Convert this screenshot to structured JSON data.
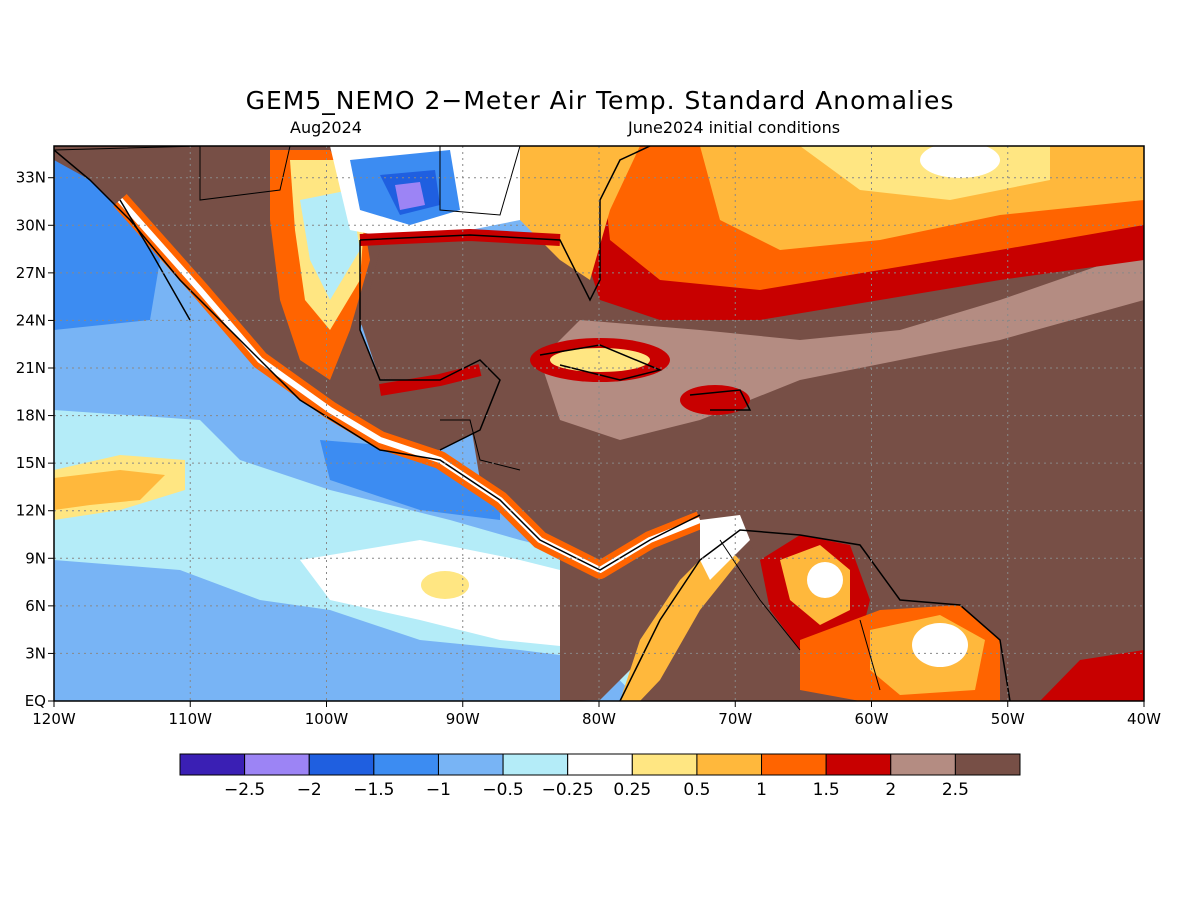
{
  "title": "GEM5_NEMO 2−Meter Air Temp. Standard Anomalies",
  "subtitle_left": "Aug2024",
  "subtitle_right": "June2024 initial conditions",
  "map": {
    "lon_range": [
      -120,
      -40
    ],
    "lat_range": [
      0,
      35
    ],
    "lon_ticks": [
      "120W",
      "110W",
      "100W",
      "90W",
      "80W",
      "70W",
      "60W",
      "50W",
      "40W"
    ],
    "lat_ticks": [
      "EQ",
      "3N",
      "6N",
      "9N",
      "12N",
      "15N",
      "18N",
      "21N",
      "24N",
      "27N",
      "30N",
      "33N"
    ]
  },
  "colorbar": {
    "colors": [
      "#3a1fb4",
      "#9c84f5",
      "#1f5fe0",
      "#3c8cf2",
      "#78b4f5",
      "#b4ecf8",
      "#ffffff",
      "#ffe682",
      "#ffb83c",
      "#ff6400",
      "#c80000",
      "#b48c82",
      "#774f46"
    ],
    "labels": [
      "−2.5",
      "−2",
      "−1.5",
      "−1",
      "−0.5",
      "−0.25",
      "0.25",
      "0.5",
      "1",
      "1.5",
      "2",
      "2.5"
    ]
  }
}
